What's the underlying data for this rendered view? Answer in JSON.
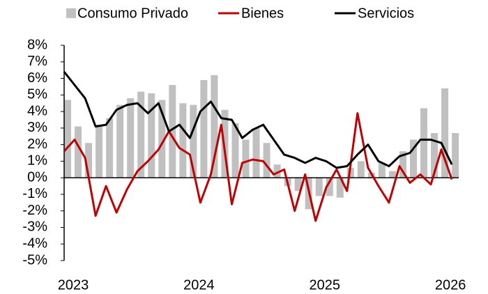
{
  "chart_data": {
    "type": "bar-line",
    "categories": [
      "2023",
      null,
      null,
      null,
      null,
      null,
      null,
      null,
      null,
      null,
      null,
      null,
      "2024",
      null,
      null,
      null,
      null,
      null,
      null,
      null,
      null,
      null,
      null,
      null,
      "2025",
      null,
      null,
      null,
      null,
      null,
      null,
      null,
      null,
      null,
      null,
      null,
      "2026",
      null
    ],
    "series": [
      {
        "name": "Consumo Privado",
        "kind": "bar",
        "color": "#c0c0c0",
        "values": [
          4.7,
          3.1,
          2.1,
          3.2,
          3.6,
          4.4,
          4.8,
          5.2,
          5.1,
          4.7,
          5.6,
          4.5,
          4.4,
          5.9,
          6.2,
          4.1,
          3.3,
          2.3,
          3.0,
          2.1,
          0.8,
          -0.5,
          -0.8,
          -1.9,
          -1.1,
          -1.1,
          -1.2,
          0.6,
          1.0,
          0.3,
          0.9,
          0.4,
          1.6,
          2.3,
          4.2,
          2.7,
          5.4,
          2.7
        ]
      },
      {
        "name": "Bienes",
        "kind": "line",
        "color": "#c00000",
        "values": [
          1.6,
          2.3,
          1.2,
          -2.3,
          -0.5,
          -2.1,
          -0.7,
          0.4,
          1.0,
          1.7,
          2.8,
          1.8,
          1.4,
          -1.5,
          0.2,
          3.2,
          -1.6,
          0.9,
          1.1,
          1.0,
          0.2,
          0.5,
          -2.0,
          0.2,
          -2.6,
          -0.6,
          0.5,
          -0.8,
          3.9,
          0.6,
          -0.5,
          -1.5,
          0.7,
          -0.3,
          0.2,
          -0.4,
          1.7,
          -0.1
        ]
      },
      {
        "name": "Servicios",
        "kind": "line",
        "color": "#000000",
        "values": [
          6.4,
          5.6,
          4.8,
          3.1,
          3.2,
          4.1,
          4.4,
          4.5,
          3.9,
          4.5,
          2.8,
          3.2,
          2.4,
          4.0,
          4.6,
          3.6,
          3.5,
          2.4,
          2.9,
          3.2,
          2.3,
          1.4,
          1.2,
          0.9,
          1.2,
          1.0,
          0.6,
          0.7,
          1.4,
          2.0,
          1.0,
          0.7,
          1.3,
          1.5,
          2.3,
          2.3,
          2.1,
          0.8
        ]
      }
    ],
    "ylim": [
      -5,
      8
    ],
    "yticks": [
      {
        "value": 8,
        "label": "8%"
      },
      {
        "value": 7,
        "label": "7%"
      },
      {
        "value": 6,
        "label": "6%"
      },
      {
        "value": 5,
        "label": "5%"
      },
      {
        "value": 4,
        "label": "4%"
      },
      {
        "value": 3,
        "label": "3%"
      },
      {
        "value": 2,
        "label": "2%"
      },
      {
        "value": 1,
        "label": "1%"
      },
      {
        "value": 0,
        "label": "0%"
      },
      {
        "value": -1,
        "label": "-1%"
      },
      {
        "value": -2,
        "label": "-2%"
      },
      {
        "value": -3,
        "label": "-3%"
      },
      {
        "value": -4,
        "label": "-4%"
      },
      {
        "value": -5,
        "label": "-5%"
      }
    ],
    "grid": false,
    "legend": "top"
  }
}
